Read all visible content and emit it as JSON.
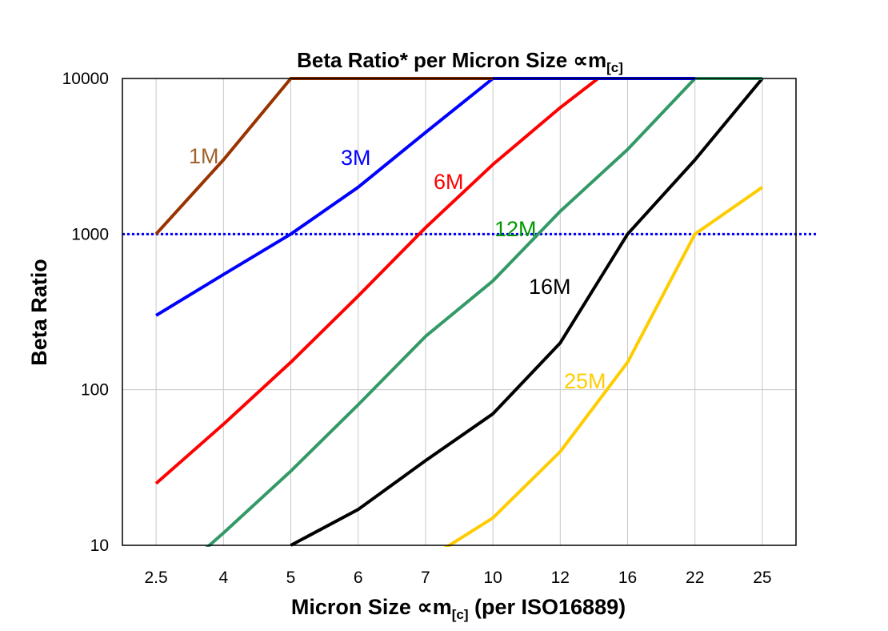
{
  "chart_data": {
    "type": "line",
    "title": "Beta Ratio* per Micron Size ∝m",
    "title_sub": "[c]",
    "xlabel": "Micron Size ∝m",
    "xlabel_sub": "[c]",
    "xlabel_suffix": " (per ISO16889)",
    "ylabel": "Beta Ratio",
    "y_scale": "log",
    "ylim": [
      10,
      10000
    ],
    "y_ticks": [
      "10",
      "100",
      "1000",
      "10000"
    ],
    "grid": true,
    "categories": [
      "2.5",
      "4",
      "5",
      "6",
      "7",
      "10",
      "12",
      "16",
      "22",
      "25"
    ],
    "reference_line": {
      "value": 1000,
      "style": "dotted",
      "color": "#0000FF"
    },
    "series": [
      {
        "name": "1M",
        "color": "#993300",
        "label_color": "#A0632E",
        "values": [
          1000,
          3000,
          10000,
          10000,
          10000,
          10000,
          null,
          null,
          null,
          null
        ]
      },
      {
        "name": "3M",
        "color": "#0000FF",
        "label_color": "#0000FF",
        "values": [
          300,
          550,
          1000,
          2000,
          4500,
          10000,
          10000,
          10000,
          10000,
          null
        ]
      },
      {
        "name": "6M",
        "color": "#FF0000",
        "label_color": "#FF0000",
        "values": [
          25,
          60,
          150,
          400,
          1100,
          2800,
          6500,
          14000,
          null,
          null
        ]
      },
      {
        "name": "12M",
        "color": "#339966",
        "label_color": "#009900",
        "values": [
          5,
          12,
          30,
          80,
          220,
          500,
          1400,
          3500,
          10000,
          10000
        ]
      },
      {
        "name": "16M",
        "color": "#000000",
        "label_color": "#000000",
        "values": [
          null,
          null,
          10,
          17,
          35,
          70,
          200,
          1000,
          3000,
          10000
        ]
      },
      {
        "name": "25M",
        "color": "#FFCC00",
        "label_color": "#FFCC00",
        "values": [
          null,
          null,
          null,
          null,
          8,
          15,
          40,
          150,
          1000,
          2000
        ]
      }
    ]
  }
}
